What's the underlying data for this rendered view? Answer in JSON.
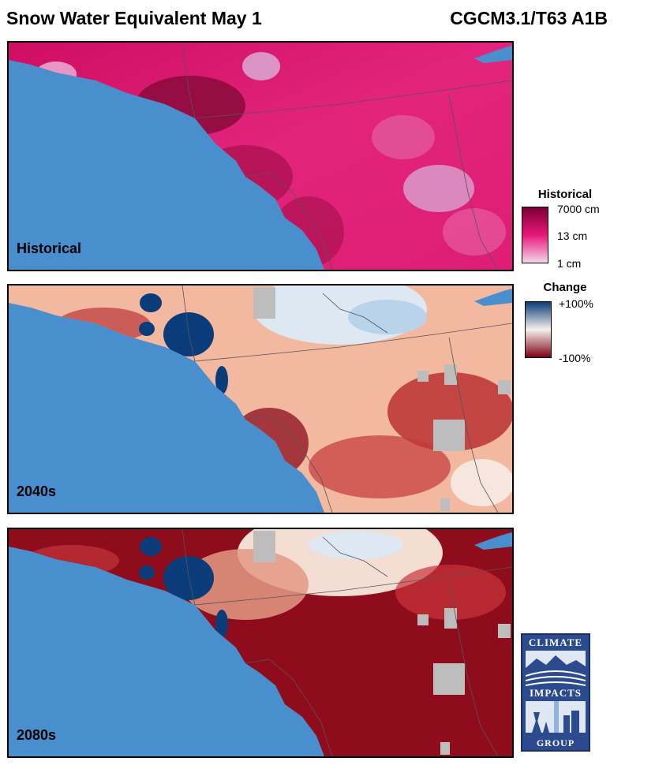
{
  "header": {
    "title": "Snow Water Equivalent May 1",
    "model": "CGCM3.1/T63 A1B"
  },
  "panels": [
    {
      "label": "Historical",
      "type": "historical"
    },
    {
      "label": "2040s",
      "type": "change"
    },
    {
      "label": "2080s",
      "type": "change"
    }
  ],
  "legend_historical": {
    "title": "Historical",
    "ticks": [
      "7000 cm",
      "13 cm",
      "1 cm"
    ],
    "colors": [
      "#7a0033",
      "#e7177a",
      "#f3d6ea"
    ]
  },
  "legend_change": {
    "title": "Change",
    "ticks": [
      "+100%",
      "-100%"
    ],
    "colors": [
      "#0b3c7a",
      "#f6f0ec",
      "#7d0016"
    ]
  },
  "colors": {
    "ocean": "#4a8fcd",
    "nodata": "#bdbdbd"
  },
  "logo": {
    "top": "CLIMATE",
    "middle": "IMPACTS",
    "bottom": "GROUP"
  }
}
